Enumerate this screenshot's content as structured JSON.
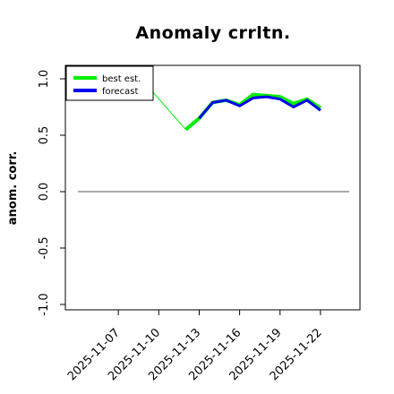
{
  "chart_data": {
    "type": "line",
    "title": "Anomaly crrltn.",
    "xlabel": "",
    "ylabel": "anom. corr.",
    "ylim": [
      -1.0,
      1.0
    ],
    "yticks": [
      -1.0,
      -0.5,
      0.0,
      0.5,
      1.0
    ],
    "ytick_labels": [
      "-1.0",
      "-0.5",
      "0.0",
      "0.5",
      "1.0"
    ],
    "xlim": [
      "2025-11-04",
      "2025-11-24"
    ],
    "xticks": [
      "2025-11-07",
      "2025-11-10",
      "2025-11-13",
      "2025-11-16",
      "2025-11-19",
      "2025-11-22"
    ],
    "xtick_colors": [
      "#000000",
      "#000000",
      "#2e8b2e",
      "#000000",
      "#000000",
      "#000000"
    ],
    "reference_line": 0.0,
    "legend_placement": "top-left",
    "series": [
      {
        "name": "best est.",
        "color": "#00ee00",
        "x": [
          "2025-11-09",
          "2025-11-12",
          "2025-11-13",
          "2025-11-14",
          "2025-11-15",
          "2025-11-16",
          "2025-11-17",
          "2025-11-18",
          "2025-11-19",
          "2025-11-20",
          "2025-11-21",
          "2025-11-22"
        ],
        "y": [
          0.96,
          0.55,
          0.65,
          0.79,
          0.81,
          0.77,
          0.86,
          0.85,
          0.84,
          0.78,
          0.82,
          0.74
        ]
      },
      {
        "name": "forecast",
        "color": "#0000ee",
        "x": [
          "2025-11-13",
          "2025-11-14",
          "2025-11-15",
          "2025-11-16",
          "2025-11-17",
          "2025-11-18",
          "2025-11-19",
          "2025-11-20",
          "2025-11-21",
          "2025-11-22"
        ],
        "y": [
          0.65,
          0.79,
          0.81,
          0.76,
          0.83,
          0.84,
          0.82,
          0.75,
          0.81,
          0.72
        ]
      }
    ]
  }
}
